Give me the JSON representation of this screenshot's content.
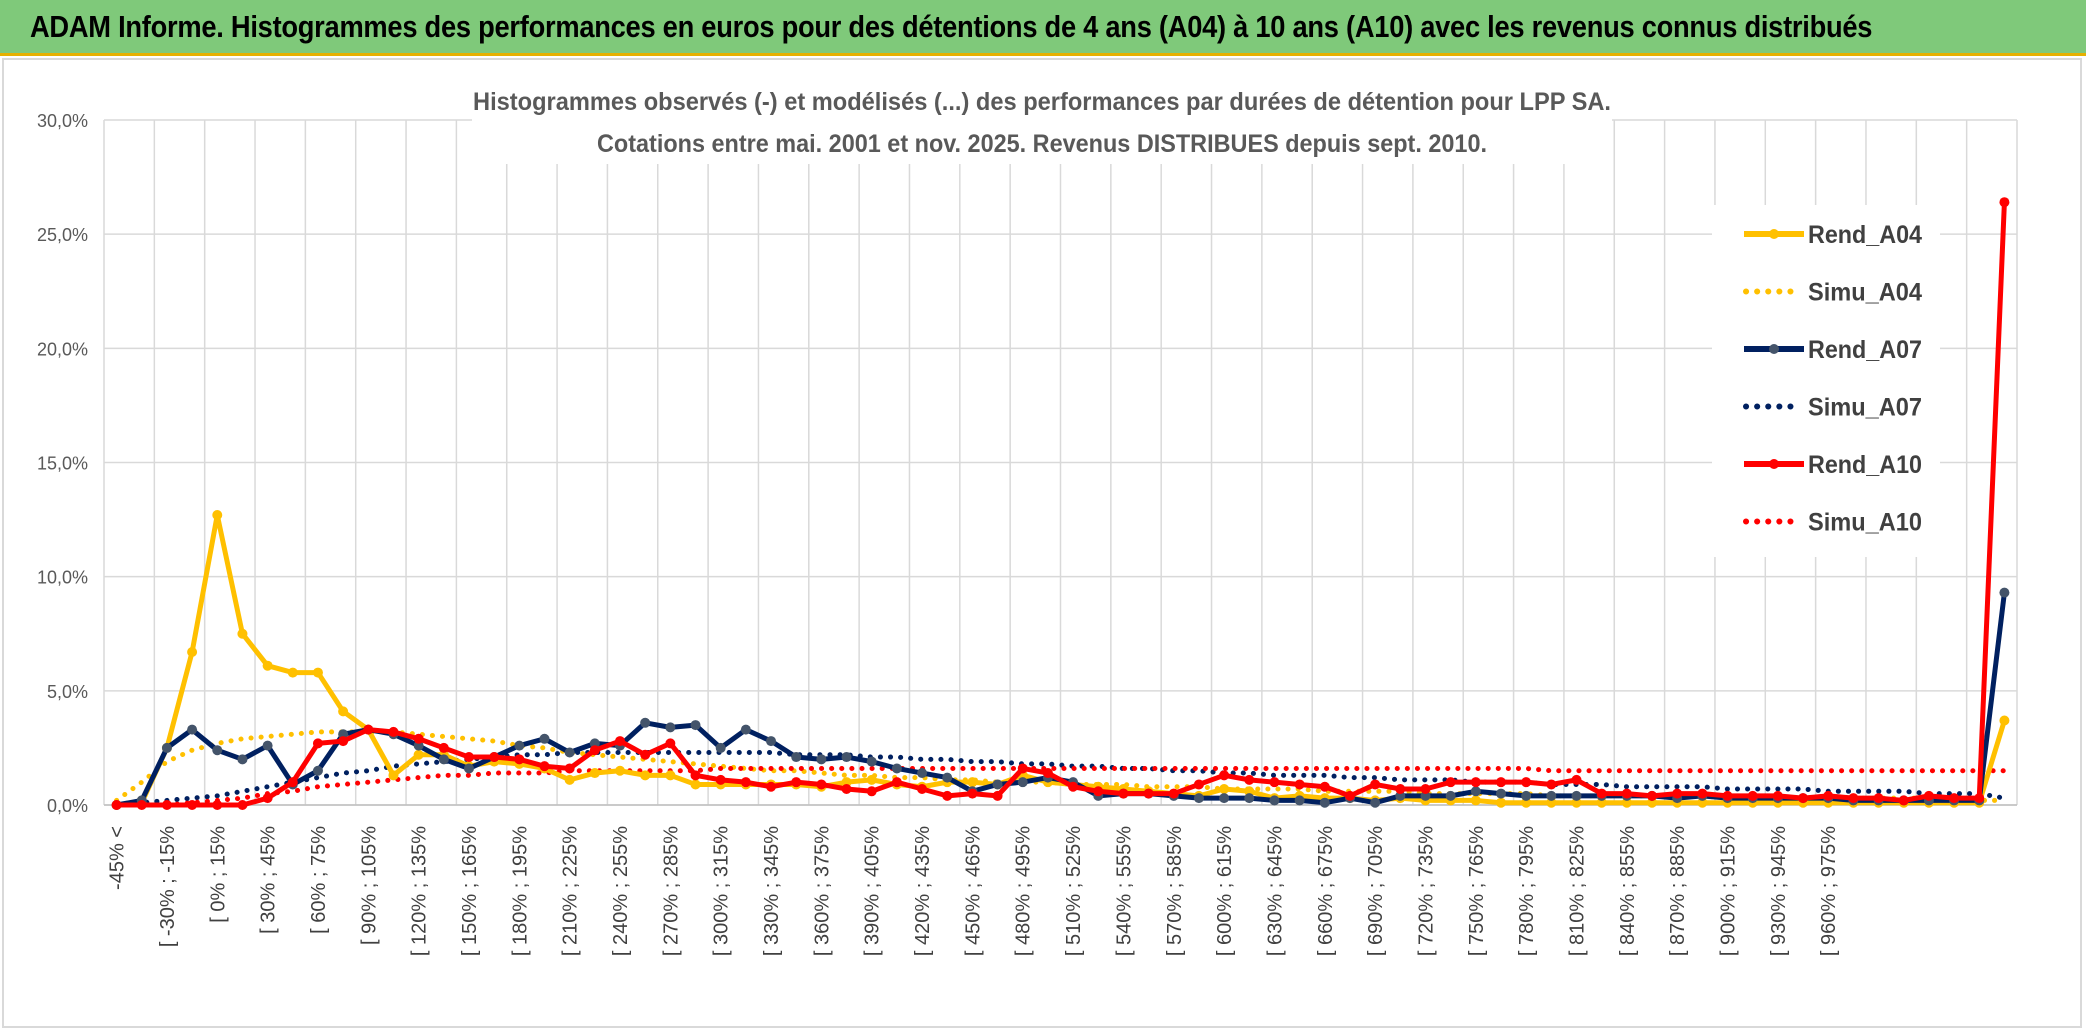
{
  "header": {
    "title": "ADAM Informe. Histogrammes des performances en euros pour des détentions de 4 ans (A04) à 10 ans (A10) avec les revenus connus distribués"
  },
  "colors": {
    "banner": "#7fc97a",
    "a04": "#ffc000",
    "a07": "#002060",
    "a10": "#ff0000"
  },
  "chart_data": {
    "type": "line",
    "title": "Histogrammes observés (-) et modélisés (...) des performances par durées de détention pour LPP SA.",
    "subtitle": "Cotations entre mai. 2001 et nov. 2025. Revenus DISTRIBUES depuis sept. 2010.",
    "y_ticks": [
      "0,0%",
      "5,0%",
      "10,0%",
      "15,0%",
      "20,0%",
      "25,0%",
      "30,0%"
    ],
    "ylim": [
      0,
      30
    ],
    "grid": true,
    "legend_position": "right",
    "x_tick_labels": [
      "-45% <",
      "[ -30% ; -15%",
      "[ 0% ; 15%",
      "[ 30% ; 45%",
      "[ 60% ; 75%",
      "[ 90% ; 105%",
      "[ 120% ; 135%",
      "[ 150% ; 165%",
      "[ 180% ; 195%",
      "[ 210% ; 225%",
      "[ 240% ; 255%",
      "[ 270% ; 285%",
      "[ 300% ; 315%",
      "[ 330% ; 345%",
      "[ 360% ; 375%",
      "[ 390% ; 405%",
      "[ 420% ; 435%",
      "[ 450% ; 465%",
      "[ 480% ; 495%",
      "[ 510% ; 525%",
      "[ 540% ; 555%",
      "[ 570% ; 585%",
      "[ 600% ; 615%",
      "[ 630% ; 645%",
      "[ 660% ; 675%",
      "[ 690% ; 705%",
      "[ 720% ; 735%",
      "[ 750% ; 765%",
      "[ 780% ; 795%",
      "[ 810% ; 825%",
      "[ 840% ; 855%",
      "[ 870% ; 885%",
      "[ 900% ; 915%",
      "[ 930% ; 945%",
      "[ 960% ; 975%"
    ],
    "series": [
      {
        "name": "Rend_A04",
        "style": "solid",
        "color": "#ffc000",
        "values": [
          0.0,
          0.1,
          2.5,
          6.7,
          12.7,
          7.5,
          6.1,
          5.8,
          5.8,
          4.1,
          3.3,
          1.3,
          2.2,
          2.2,
          1.7,
          1.9,
          1.8,
          1.6,
          1.1,
          1.4,
          1.5,
          1.3,
          1.3,
          0.9,
          0.9,
          0.9,
          0.9,
          0.9,
          0.8,
          1.0,
          1.1,
          0.9,
          0.8,
          1.0,
          1.0,
          0.9,
          1.3,
          1.0,
          0.9,
          0.8,
          0.7,
          0.6,
          0.5,
          0.4,
          0.7,
          0.6,
          0.3,
          0.4,
          0.3,
          0.3,
          0.2,
          0.3,
          0.2,
          0.2,
          0.2,
          0.1,
          0.1,
          0.1,
          0.1,
          0.1,
          0.1,
          0.1,
          0.1,
          0.1,
          0.1,
          0.1,
          0.1,
          0.1,
          0.1,
          0.1,
          0.1,
          0.1,
          0.1,
          0.1,
          0.1,
          3.7
        ]
      },
      {
        "name": "Simu_A04",
        "style": "dotted",
        "color": "#ffc000",
        "values": [
          0.2,
          1.0,
          1.9,
          2.4,
          2.7,
          2.9,
          3.0,
          3.1,
          3.2,
          3.2,
          3.2,
          3.2,
          3.1,
          3.0,
          2.9,
          2.8,
          2.6,
          2.5,
          2.3,
          2.2,
          2.1,
          2.0,
          1.9,
          1.8,
          1.7,
          1.6,
          1.5,
          1.5,
          1.4,
          1.3,
          1.3,
          1.2,
          1.2,
          1.1,
          1.1,
          1.0,
          1.0,
          1.0,
          0.9,
          0.9,
          0.9,
          0.8,
          0.8,
          0.8,
          0.7,
          0.7,
          0.7,
          0.7,
          0.6,
          0.6,
          0.6,
          0.6,
          0.5,
          0.5,
          0.5,
          0.5,
          0.5,
          0.4,
          0.4,
          0.4,
          0.4,
          0.4,
          0.4,
          0.4,
          0.3,
          0.3,
          0.3,
          0.3,
          0.3,
          0.3,
          0.3,
          0.3,
          0.3,
          0.2,
          0.2,
          0.2
        ]
      },
      {
        "name": "Rend_A07",
        "style": "solid",
        "color": "#002060",
        "values": [
          0.0,
          0.2,
          2.5,
          3.3,
          2.4,
          2.0,
          2.6,
          0.9,
          1.5,
          3.1,
          3.3,
          3.1,
          2.6,
          2.0,
          1.6,
          2.1,
          2.6,
          2.9,
          2.3,
          2.7,
          2.6,
          3.6,
          3.4,
          3.5,
          2.5,
          3.3,
          2.8,
          2.1,
          2.0,
          2.1,
          1.9,
          1.6,
          1.4,
          1.2,
          0.6,
          0.9,
          1.0,
          1.2,
          1.0,
          0.4,
          0.5,
          0.5,
          0.4,
          0.3,
          0.3,
          0.3,
          0.2,
          0.2,
          0.1,
          0.3,
          0.1,
          0.4,
          0.4,
          0.4,
          0.6,
          0.5,
          0.4,
          0.4,
          0.4,
          0.4,
          0.4,
          0.4,
          0.3,
          0.4,
          0.3,
          0.3,
          0.3,
          0.3,
          0.3,
          0.2,
          0.2,
          0.2,
          0.2,
          0.2,
          0.2,
          9.3
        ]
      },
      {
        "name": "Simu_A07",
        "style": "dotted",
        "color": "#002060",
        "values": [
          0.0,
          0.1,
          0.2,
          0.3,
          0.4,
          0.6,
          0.8,
          1.0,
          1.2,
          1.4,
          1.5,
          1.7,
          1.8,
          1.9,
          2.0,
          2.1,
          2.2,
          2.2,
          2.3,
          2.3,
          2.3,
          2.3,
          2.3,
          2.3,
          2.3,
          2.3,
          2.3,
          2.2,
          2.2,
          2.2,
          2.1,
          2.1,
          2.0,
          2.0,
          1.9,
          1.9,
          1.8,
          1.8,
          1.7,
          1.7,
          1.6,
          1.6,
          1.5,
          1.5,
          1.4,
          1.4,
          1.3,
          1.3,
          1.3,
          1.2,
          1.2,
          1.1,
          1.1,
          1.1,
          1.0,
          1.0,
          1.0,
          0.9,
          0.9,
          0.9,
          0.8,
          0.8,
          0.8,
          0.8,
          0.7,
          0.7,
          0.7,
          0.7,
          0.6,
          0.6,
          0.6,
          0.6,
          0.5,
          0.5,
          0.5,
          0.3
        ]
      },
      {
        "name": "Rend_A10",
        "style": "solid",
        "color": "#ff0000",
        "values": [
          0.0,
          0.0,
          0.0,
          0.0,
          0.0,
          0.0,
          0.3,
          1.0,
          2.7,
          2.8,
          3.3,
          3.2,
          2.9,
          2.5,
          2.1,
          2.1,
          2.0,
          1.7,
          1.6,
          2.4,
          2.8,
          2.2,
          2.7,
          1.3,
          1.1,
          1.0,
          0.8,
          1.0,
          0.9,
          0.7,
          0.6,
          1.0,
          0.7,
          0.4,
          0.5,
          0.4,
          1.6,
          1.4,
          0.8,
          0.6,
          0.5,
          0.5,
          0.5,
          0.9,
          1.3,
          1.1,
          1.0,
          0.9,
          0.8,
          0.4,
          0.9,
          0.7,
          0.7,
          1.0,
          1.0,
          1.0,
          1.0,
          0.9,
          1.1,
          0.5,
          0.5,
          0.4,
          0.5,
          0.5,
          0.4,
          0.4,
          0.4,
          0.3,
          0.4,
          0.3,
          0.3,
          0.2,
          0.4,
          0.3,
          0.3,
          26.4
        ]
      },
      {
        "name": "Simu_A10",
        "style": "dotted",
        "color": "#ff0000",
        "values": [
          0.0,
          0.0,
          0.0,
          0.1,
          0.2,
          0.3,
          0.5,
          0.6,
          0.8,
          0.9,
          1.0,
          1.1,
          1.2,
          1.3,
          1.3,
          1.4,
          1.4,
          1.4,
          1.5,
          1.5,
          1.5,
          1.5,
          1.5,
          1.5,
          1.6,
          1.6,
          1.6,
          1.6,
          1.6,
          1.6,
          1.6,
          1.6,
          1.6,
          1.6,
          1.6,
          1.6,
          1.6,
          1.6,
          1.6,
          1.6,
          1.6,
          1.6,
          1.6,
          1.6,
          1.6,
          1.6,
          1.6,
          1.6,
          1.6,
          1.6,
          1.6,
          1.6,
          1.6,
          1.6,
          1.6,
          1.6,
          1.6,
          1.5,
          1.5,
          1.5,
          1.5,
          1.5,
          1.5,
          1.5,
          1.5,
          1.5,
          1.5,
          1.5,
          1.5,
          1.5,
          1.5,
          1.5,
          1.5,
          1.5,
          1.5,
          1.5
        ]
      }
    ]
  }
}
